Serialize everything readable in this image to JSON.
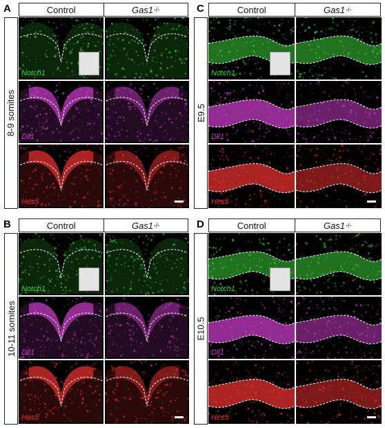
{
  "panels": [
    {
      "letter": "A",
      "col_control": "Control",
      "col_mutant": "Gas1",
      "mutant_sup": "-/-",
      "stage": "8-9 somites"
    },
    {
      "letter": "B",
      "col_control": "Control",
      "col_mutant": "Gas1",
      "mutant_sup": "-/-",
      "stage": "10-11 somites"
    },
    {
      "letter": "C",
      "col_control": "Control",
      "col_mutant": "Gas1",
      "mutant_sup": "-/-",
      "stage": "E9.5"
    },
    {
      "letter": "D",
      "col_control": "Control",
      "col_mutant": "Gas1",
      "mutant_sup": "-/-",
      "stage": "E10.5"
    }
  ],
  "genes": [
    "Notch1",
    "Dll1",
    "Hes5"
  ],
  "colors": {
    "notch1": "#3ccf3c",
    "dll1": "#c23bc2",
    "hes5": "#e23030",
    "outline": "#ffffff"
  }
}
